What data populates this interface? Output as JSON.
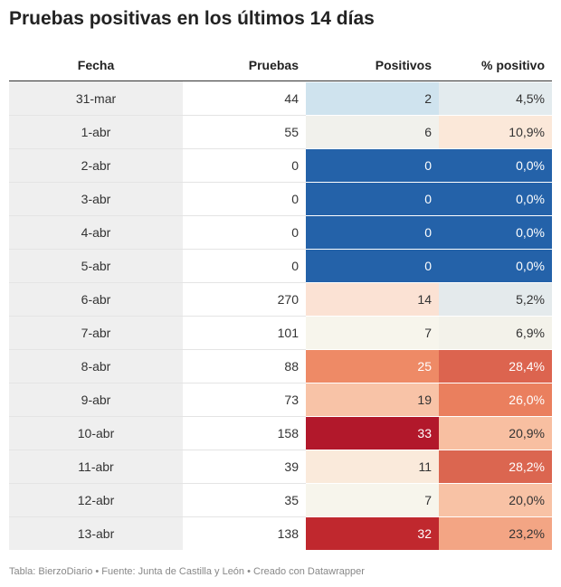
{
  "title": "Pruebas positivas en los últimos 14 días",
  "footer": "Tabla: BierzoDiario • Fuente: Junta de Castilla y León • Creado con Datawrapper",
  "chart_data": {
    "type": "table",
    "columns": [
      "Fecha",
      "Pruebas",
      "Positivos",
      "% positivo"
    ],
    "rows": [
      {
        "fecha": "31-mar",
        "pruebas": "44",
        "positivos": "2",
        "pct": "4,5%",
        "pos_bg": "#cfe3ee",
        "pct_bg": "#e3ebee",
        "pos_fg": "#333333",
        "pct_fg": "#333333"
      },
      {
        "fecha": "1-abr",
        "pruebas": "55",
        "positivos": "6",
        "pct": "10,9%",
        "pos_bg": "#f1f1ec",
        "pct_bg": "#fbe8d9",
        "pos_fg": "#333333",
        "pct_fg": "#333333"
      },
      {
        "fecha": "2-abr",
        "pruebas": "0",
        "positivos": "0",
        "pct": "0,0%",
        "pos_bg": "#2462a9",
        "pct_bg": "#2462a9",
        "pos_fg": "#ffffff",
        "pct_fg": "#ffffff"
      },
      {
        "fecha": "3-abr",
        "pruebas": "0",
        "positivos": "0",
        "pct": "0,0%",
        "pos_bg": "#2462a9",
        "pct_bg": "#2462a9",
        "pos_fg": "#ffffff",
        "pct_fg": "#ffffff"
      },
      {
        "fecha": "4-abr",
        "pruebas": "0",
        "positivos": "0",
        "pct": "0,0%",
        "pos_bg": "#2462a9",
        "pct_bg": "#2462a9",
        "pos_fg": "#ffffff",
        "pct_fg": "#ffffff"
      },
      {
        "fecha": "5-abr",
        "pruebas": "0",
        "positivos": "0",
        "pct": "0,0%",
        "pos_bg": "#2462a9",
        "pct_bg": "#2462a9",
        "pos_fg": "#ffffff",
        "pct_fg": "#ffffff"
      },
      {
        "fecha": "6-abr",
        "pruebas": "270",
        "positivos": "14",
        "pct": "5,2%",
        "pos_bg": "#fbe2d4",
        "pct_bg": "#e4eaec",
        "pos_fg": "#333333",
        "pct_fg": "#333333"
      },
      {
        "fecha": "7-abr",
        "pruebas": "101",
        "positivos": "7",
        "pct": "6,9%",
        "pos_bg": "#f7f5ec",
        "pct_bg": "#f3f2ea",
        "pos_fg": "#333333",
        "pct_fg": "#333333"
      },
      {
        "fecha": "8-abr",
        "pruebas": "88",
        "positivos": "25",
        "pct": "28,4%",
        "pos_bg": "#ee8a66",
        "pct_bg": "#dc644f",
        "pos_fg": "#ffffff",
        "pct_fg": "#ffffff"
      },
      {
        "fecha": "9-abr",
        "pruebas": "73",
        "positivos": "19",
        "pct": "26,0%",
        "pos_bg": "#f8c3a7",
        "pct_bg": "#ea7f5e",
        "pos_fg": "#333333",
        "pct_fg": "#ffffff"
      },
      {
        "fecha": "10-abr",
        "pruebas": "158",
        "positivos": "33",
        "pct": "20,9%",
        "pos_bg": "#b2182b",
        "pct_bg": "#f8bfa1",
        "pos_fg": "#ffffff",
        "pct_fg": "#333333"
      },
      {
        "fecha": "11-abr",
        "pruebas": "39",
        "positivos": "11",
        "pct": "28,2%",
        "pos_bg": "#faeadb",
        "pct_bg": "#db6650",
        "pos_fg": "#333333",
        "pct_fg": "#ffffff"
      },
      {
        "fecha": "12-abr",
        "pruebas": "35",
        "positivos": "7",
        "pct": "20,0%",
        "pos_bg": "#f7f5ec",
        "pct_bg": "#f8c2a5",
        "pos_fg": "#333333",
        "pct_fg": "#333333"
      },
      {
        "fecha": "13-abr",
        "pruebas": "138",
        "positivos": "32",
        "pct": "23,2%",
        "pos_bg": "#c0282e",
        "pct_bg": "#f3a584",
        "pos_fg": "#ffffff",
        "pct_fg": "#333333"
      }
    ]
  }
}
